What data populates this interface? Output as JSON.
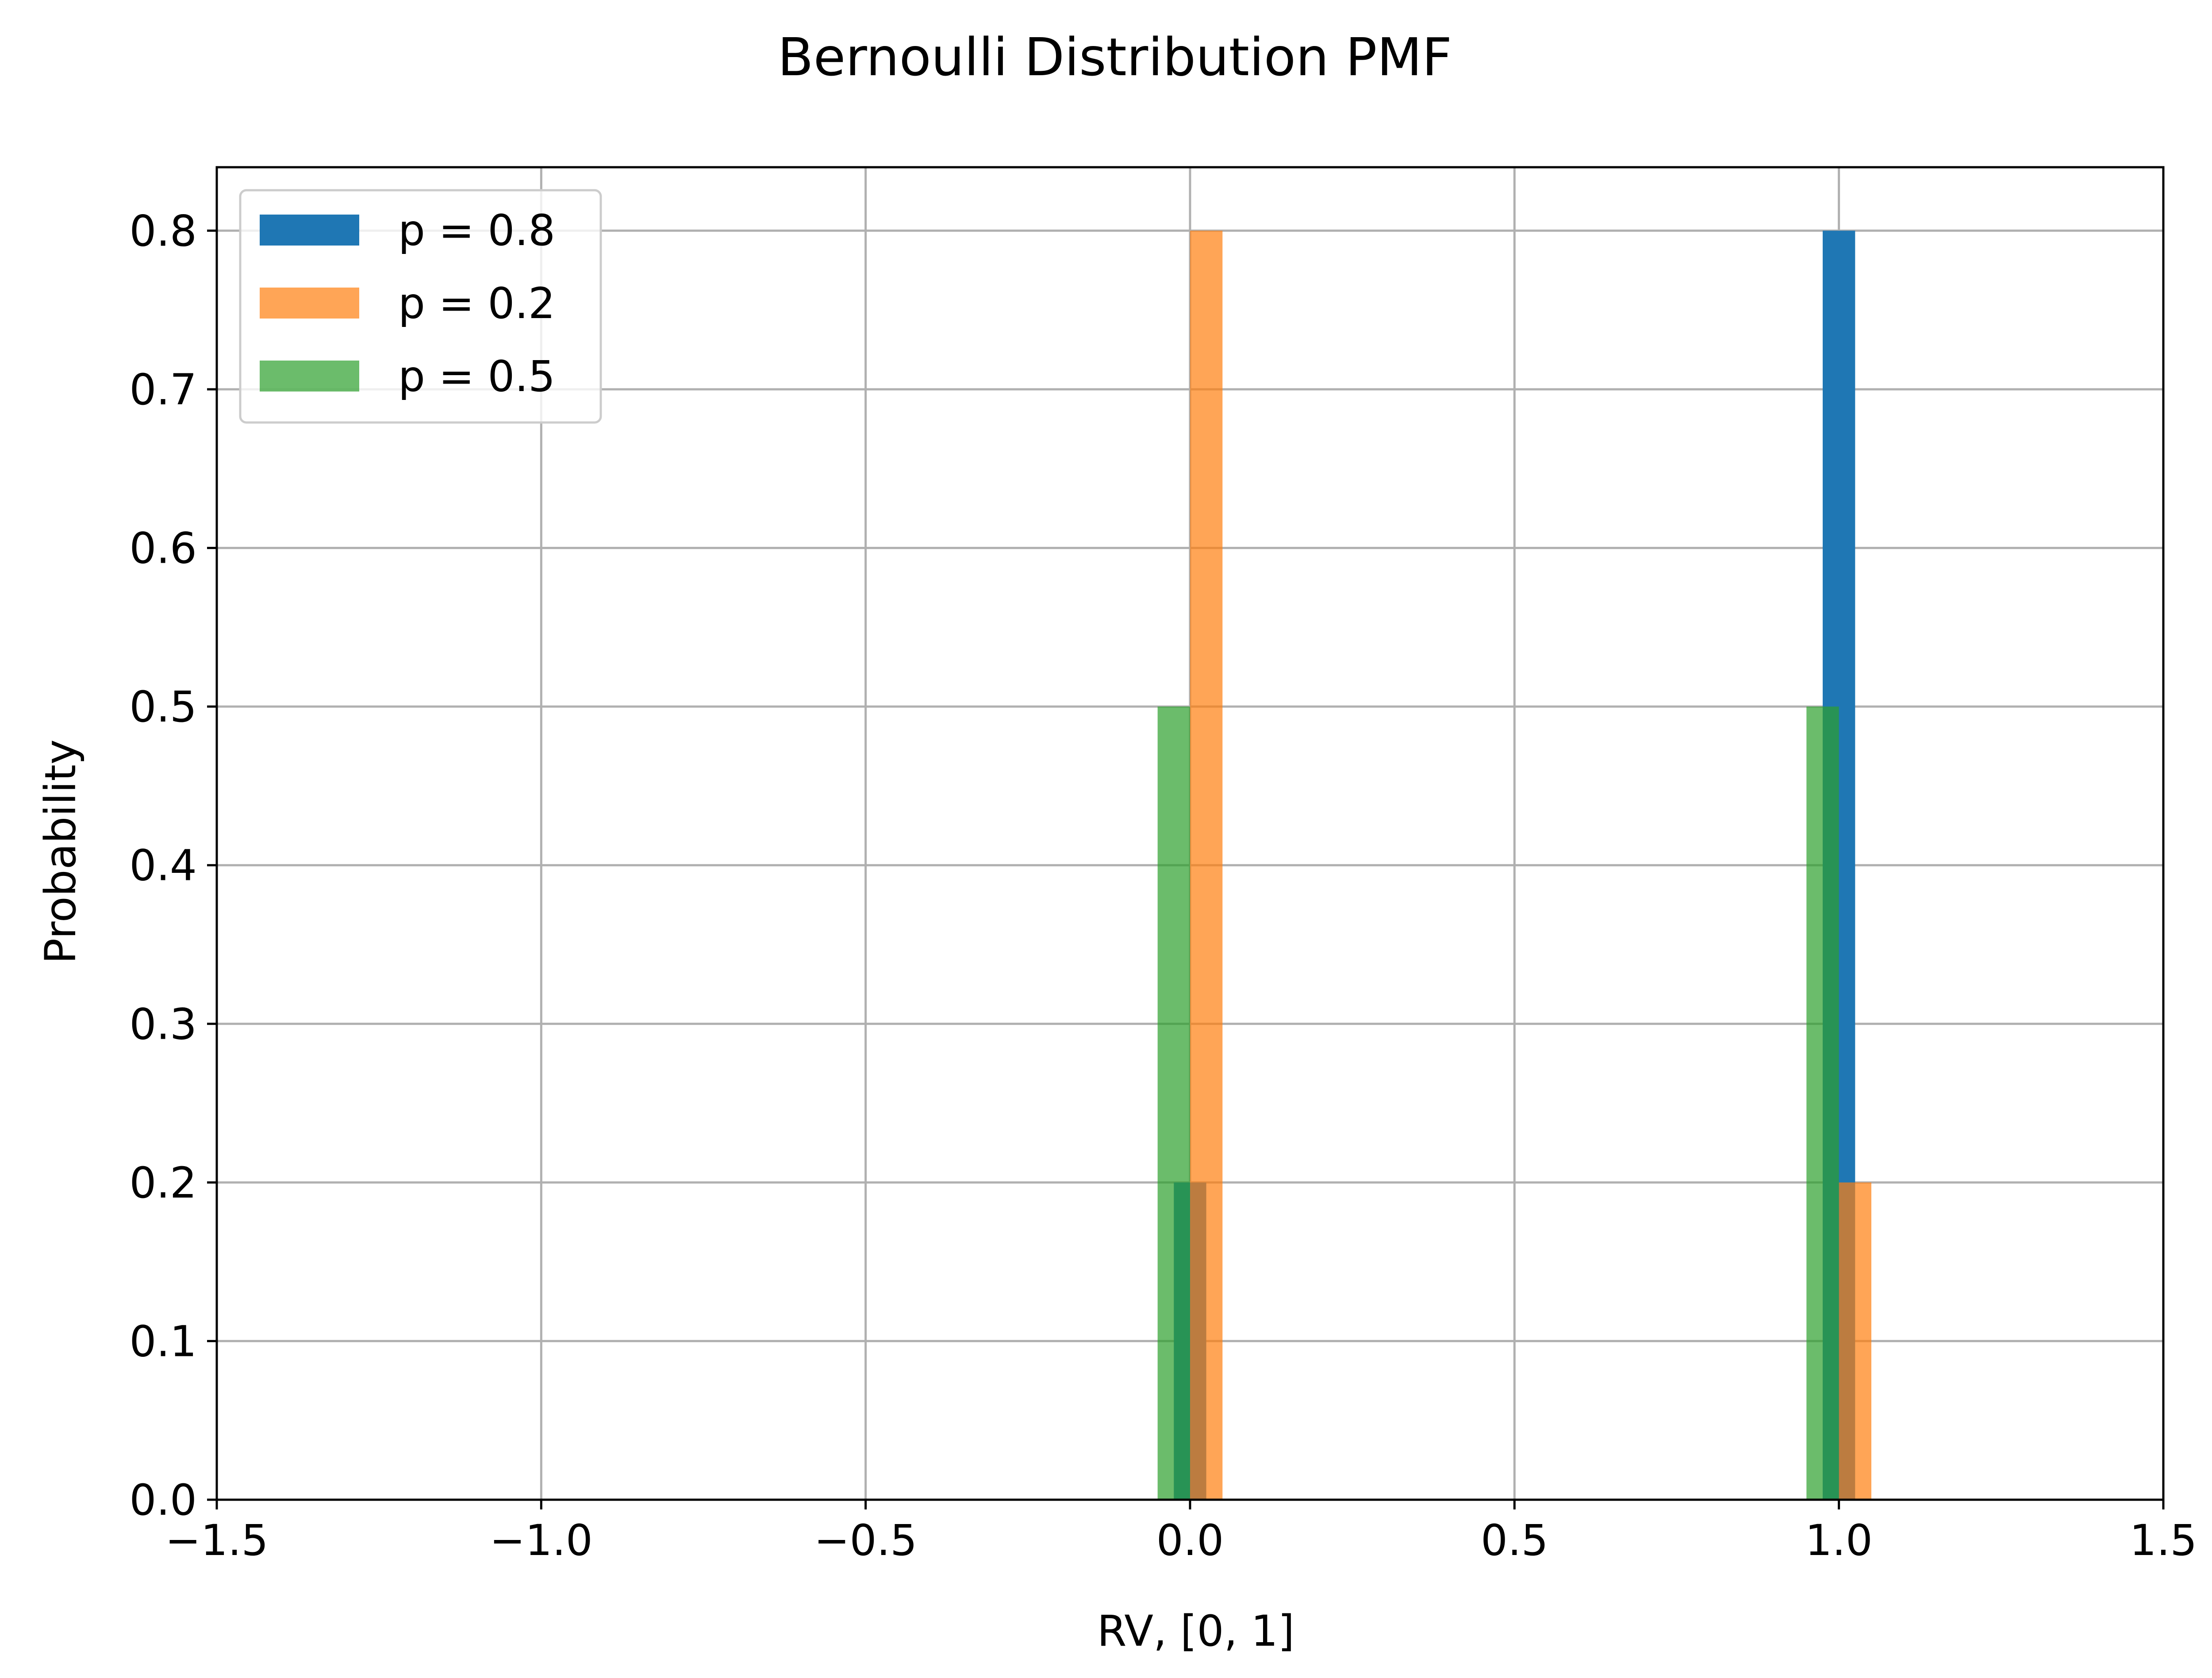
{
  "chart_data": {
    "type": "bar",
    "title": "Bernoulli Distribution PMF",
    "xlabel": "RV, [0, 1]",
    "ylabel": "Probability",
    "xlim": [
      -1.5,
      1.5
    ],
    "ylim": [
      0.0,
      0.84
    ],
    "xticks": [
      -1.5,
      -1.0,
      -0.5,
      0.0,
      0.5,
      1.0,
      1.5
    ],
    "xtick_labels": [
      "−1.5",
      "−1.0",
      "−0.5",
      "0.0",
      "0.5",
      "1.0",
      "1.5"
    ],
    "yticks": [
      0.0,
      0.1,
      0.2,
      0.3,
      0.4,
      0.5,
      0.6,
      0.7,
      0.8
    ],
    "ytick_labels": [
      "0.0",
      "0.1",
      "0.2",
      "0.3",
      "0.4",
      "0.5",
      "0.6",
      "0.7",
      "0.8"
    ],
    "grid": true,
    "legend_position": "top-left",
    "series": [
      {
        "name": "p = 0.8",
        "color": "#1f77b4",
        "opacity": 1.0,
        "bars": [
          {
            "x0": -0.025,
            "x1": 0.025,
            "y": 0.2
          },
          {
            "x0": 0.975,
            "x1": 1.025,
            "y": 0.8
          }
        ]
      },
      {
        "name": "p = 0.2",
        "color": "#ff7f0e",
        "opacity": 0.7,
        "bars": [
          {
            "x0": 0.0,
            "x1": 0.05,
            "y": 0.8
          },
          {
            "x0": 1.0,
            "x1": 1.05,
            "y": 0.2
          }
        ]
      },
      {
        "name": "p = 0.5",
        "color": "#2ca02c",
        "opacity": 0.7,
        "bars": [
          {
            "x0": -0.05,
            "x1": 0.0,
            "y": 0.5
          },
          {
            "x0": 0.95,
            "x1": 1.0,
            "y": 0.5
          }
        ]
      }
    ]
  }
}
